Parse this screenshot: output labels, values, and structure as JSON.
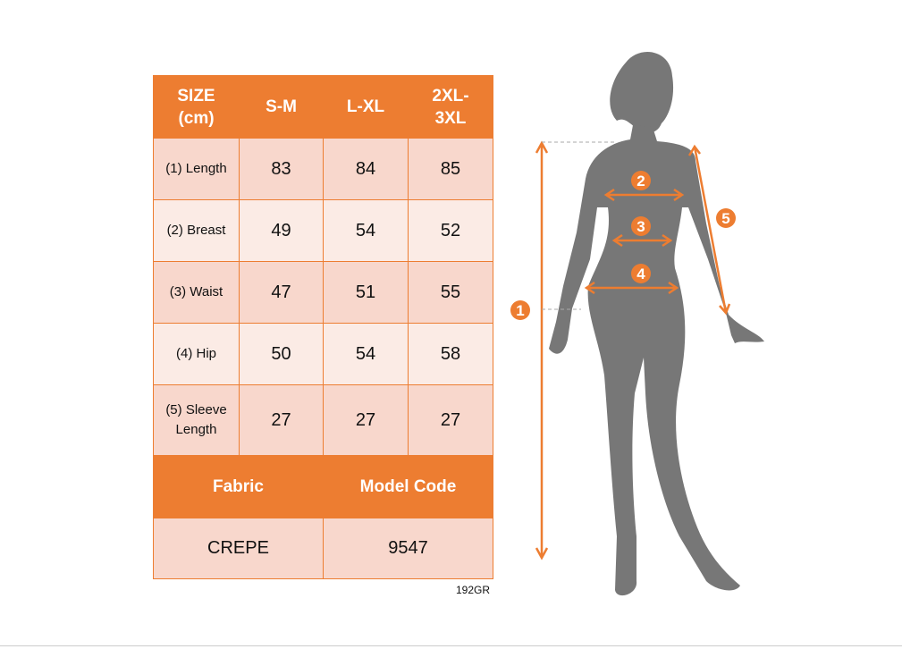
{
  "table": {
    "header": [
      "SIZE (cm)",
      "S-M",
      "L-XL",
      "2XL-3XL"
    ],
    "rows": [
      {
        "label": "(1) Length",
        "values": [
          "83",
          "84",
          "85"
        ]
      },
      {
        "label": "(2) Breast",
        "values": [
          "49",
          "54",
          "52"
        ]
      },
      {
        "label": "(3) Waist",
        "values": [
          "47",
          "51",
          "55"
        ]
      },
      {
        "label": "(4) Hip",
        "values": [
          "50",
          "54",
          "58"
        ]
      },
      {
        "label": "(5) Sleeve Length",
        "values": [
          "27",
          "27",
          "27"
        ]
      }
    ],
    "fabric_label": "Fabric",
    "model_code_label": "Model Code",
    "fabric": "CREPE",
    "model_code": "9547"
  },
  "note": "192GR",
  "figure": {
    "markers": [
      "1",
      "2",
      "3",
      "4",
      "5"
    ],
    "accent_color": "#ed7d31",
    "silhouette_color": "#777777"
  }
}
